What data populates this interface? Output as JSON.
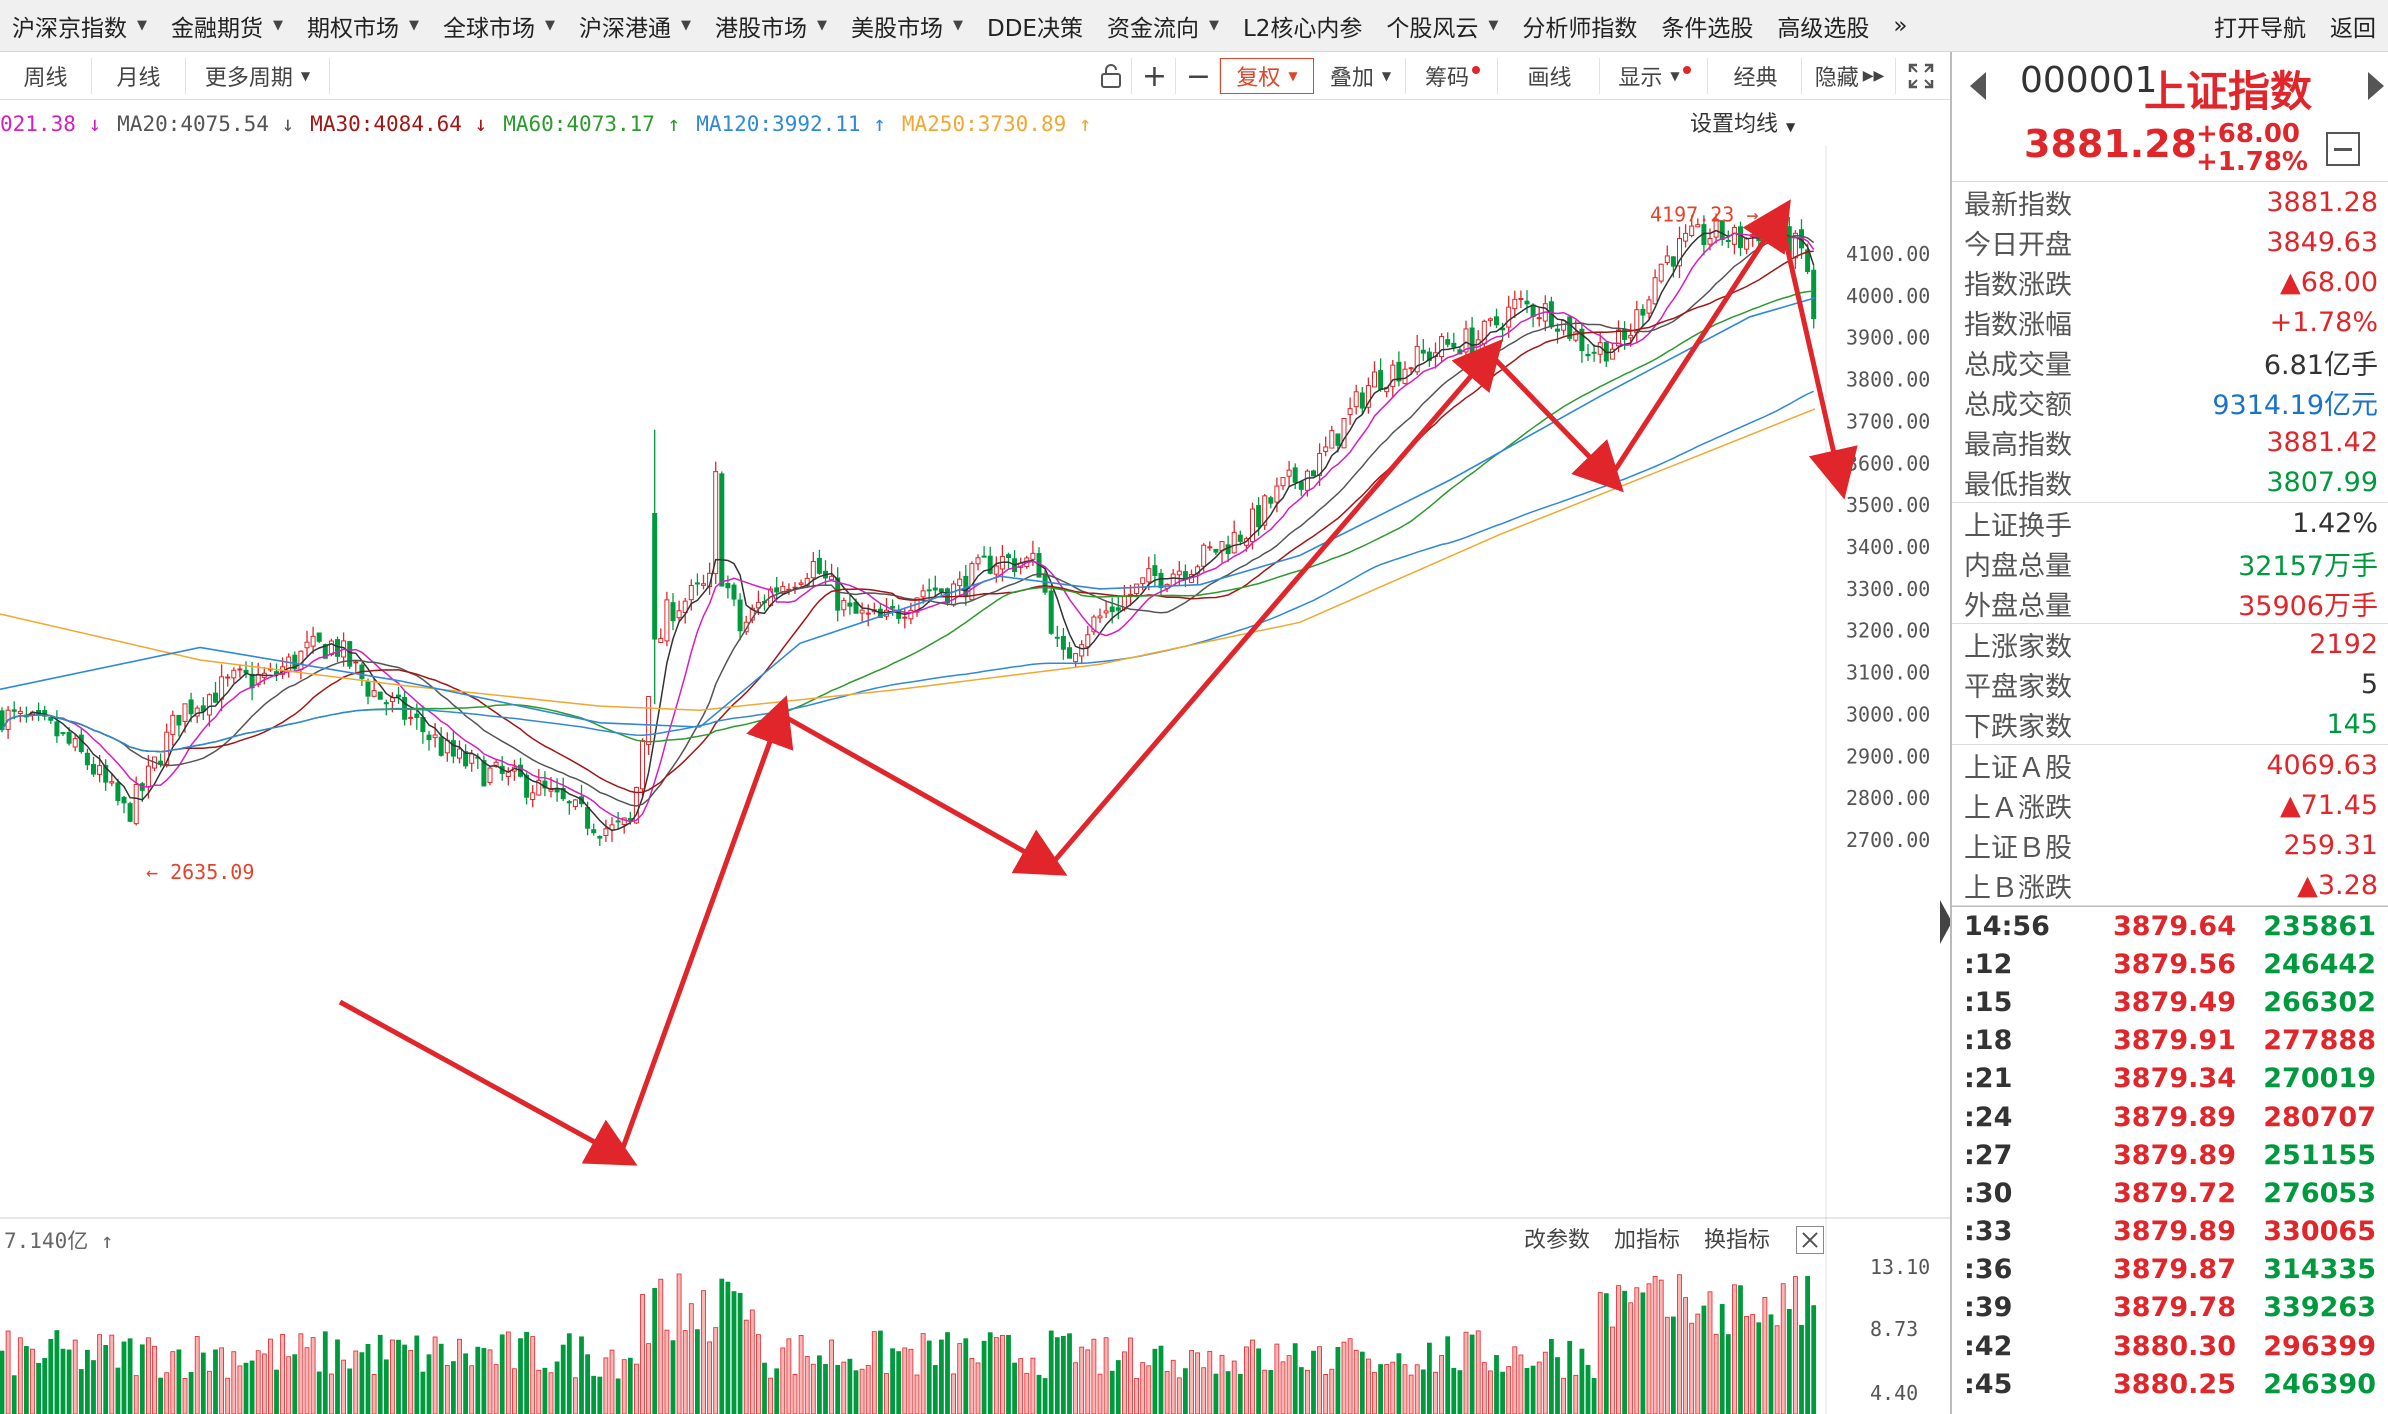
{
  "menu": {
    "items": [
      {
        "label": "沪深京指数",
        "dropdown": true
      },
      {
        "label": "金融期货",
        "dropdown": true
      },
      {
        "label": "期权市场",
        "dropdown": true
      },
      {
        "label": "全球市场",
        "dropdown": true
      },
      {
        "label": "沪深港通",
        "dropdown": true
      },
      {
        "label": "港股市场",
        "dropdown": true
      },
      {
        "label": "美股市场",
        "dropdown": true
      },
      {
        "label": "DDE决策",
        "dropdown": false
      },
      {
        "label": "资金流向",
        "dropdown": true
      },
      {
        "label": "L2核心内参",
        "dropdown": false
      },
      {
        "label": "个股风云",
        "dropdown": true
      },
      {
        "label": "分析师指数",
        "dropdown": false
      },
      {
        "label": "条件选股",
        "dropdown": false
      },
      {
        "label": "高级选股",
        "dropdown": false
      }
    ],
    "more": "»",
    "nav": "打开导航",
    "back": "返回"
  },
  "toolbar": {
    "week": "周线",
    "month": "月线",
    "more_period": "更多周期",
    "fuquan": "复权",
    "diejia": "叠加",
    "chouma": "筹码",
    "huaxian": "画线",
    "xianshi": "显示",
    "jingdian": "经典",
    "yincang": "隐藏"
  },
  "ma": {
    "ma10": "021.38",
    "ma20": "MA20:4075.54",
    "ma30": "MA30:4084.64",
    "ma60": "MA60:4073.17",
    "ma120": "MA120:3992.11",
    "ma250": "MA250:3730.89",
    "set_label": "设置均线",
    "colors": {
      "ma10": "#d51ec1",
      "ma20": "#555555",
      "ma30": "#a31515",
      "ma60": "#2d9a2d",
      "ma120": "#2f88d8",
      "ma250": "#f0a830"
    }
  },
  "chart_data": {
    "type": "candlestick",
    "y_ticks": [
      "4100.00",
      "4000.00",
      "3900.00",
      "3800.00",
      "3700.00",
      "3600.00",
      "3500.00",
      "3400.00",
      "3300.00",
      "3200.00",
      "3100.00",
      "3000.00",
      "2900.00",
      "2800.00",
      "2700.00"
    ],
    "high_label": "4197.23",
    "low_label": "2635.09",
    "arrow_waypoints": [
      [
        2880,
        4
      ],
      [
        2720,
        70
      ],
      [
        3380,
        96
      ],
      [
        3130,
        128
      ],
      [
        3950,
        184
      ],
      [
        3760,
        200
      ],
      [
        4170,
        222
      ],
      [
        3750,
        231
      ]
    ],
    "ylim": [
      2635,
      4197
    ],
    "vol_header": "7.140亿",
    "vol_ticks": [
      "13.10",
      "8.73",
      "4.40"
    ],
    "vol_buttons": [
      "改参数",
      "加指标",
      "换指标"
    ]
  },
  "quote": {
    "code": "000001",
    "name": "上证指数",
    "price": "3881.28",
    "change": "+68.00",
    "change_pct": "+1.78%"
  },
  "stats": [
    [
      {
        "label": "最新指数",
        "value": "3881.28",
        "color": "#e0262a"
      },
      {
        "label": "今日开盘",
        "value": "3849.63",
        "color": "#e0262a"
      },
      {
        "label": "指数涨跌",
        "value": "▲68.00",
        "color": "#e0262a"
      },
      {
        "label": "指数涨幅",
        "value": "+1.78%",
        "color": "#e0262a"
      },
      {
        "label": "总成交量",
        "value": "6.81亿手",
        "color": "#333333"
      },
      {
        "label": "总成交额",
        "value": "9314.19亿元",
        "color": "#1a73c9"
      },
      {
        "label": "最高指数",
        "value": "3881.42",
        "color": "#e0262a"
      },
      {
        "label": "最低指数",
        "value": "3807.99",
        "color": "#009a3e"
      }
    ],
    [
      {
        "label": "上证换手",
        "value": "1.42%",
        "color": "#333333"
      },
      {
        "label": "内盘总量",
        "value": "32157万手",
        "color": "#009a3e"
      },
      {
        "label": "外盘总量",
        "value": "35906万手",
        "color": "#e0262a"
      }
    ],
    [
      {
        "label": "上涨家数",
        "value": "2192",
        "color": "#e0262a"
      },
      {
        "label": "平盘家数",
        "value": "5",
        "color": "#333333"
      },
      {
        "label": "下跌家数",
        "value": "145",
        "color": "#009a3e"
      }
    ],
    [
      {
        "label": "上证Ａ股",
        "value": "4069.63",
        "color": "#e0262a"
      },
      {
        "label": "上Ａ涨跌",
        "value": "▲71.45",
        "color": "#e0262a"
      },
      {
        "label": "上证Ｂ股",
        "value": "259.31",
        "color": "#e0262a"
      },
      {
        "label": "上Ｂ涨跌",
        "value": "▲3.28",
        "color": "#e0262a"
      }
    ]
  ],
  "ticks": [
    {
      "time": "14:56",
      "price": "3879.64",
      "vol": "235861",
      "vol_color": "green"
    },
    {
      "time": ":12",
      "price": "3879.56",
      "vol": "246442",
      "vol_color": "green"
    },
    {
      "time": ":15",
      "price": "3879.49",
      "vol": "266302",
      "vol_color": "green"
    },
    {
      "time": ":18",
      "price": "3879.91",
      "vol": "277888",
      "vol_color": "red"
    },
    {
      "time": ":21",
      "price": "3879.34",
      "vol": "270019",
      "vol_color": "green"
    },
    {
      "time": ":24",
      "price": "3879.89",
      "vol": "280707",
      "vol_color": "red"
    },
    {
      "time": ":27",
      "price": "3879.89",
      "vol": "251155",
      "vol_color": "green"
    },
    {
      "time": ":30",
      "price": "3879.72",
      "vol": "276053",
      "vol_color": "green"
    },
    {
      "time": ":33",
      "price": "3879.89",
      "vol": "330065",
      "vol_color": "red"
    },
    {
      "time": ":36",
      "price": "3879.87",
      "vol": "314335",
      "vol_color": "green"
    },
    {
      "time": ":39",
      "price": "3879.78",
      "vol": "339263",
      "vol_color": "green"
    },
    {
      "time": ":42",
      "price": "3880.30",
      "vol": "296399",
      "vol_color": "red"
    },
    {
      "time": ":45",
      "price": "3880.25",
      "vol": "246390",
      "vol_color": "green"
    }
  ]
}
